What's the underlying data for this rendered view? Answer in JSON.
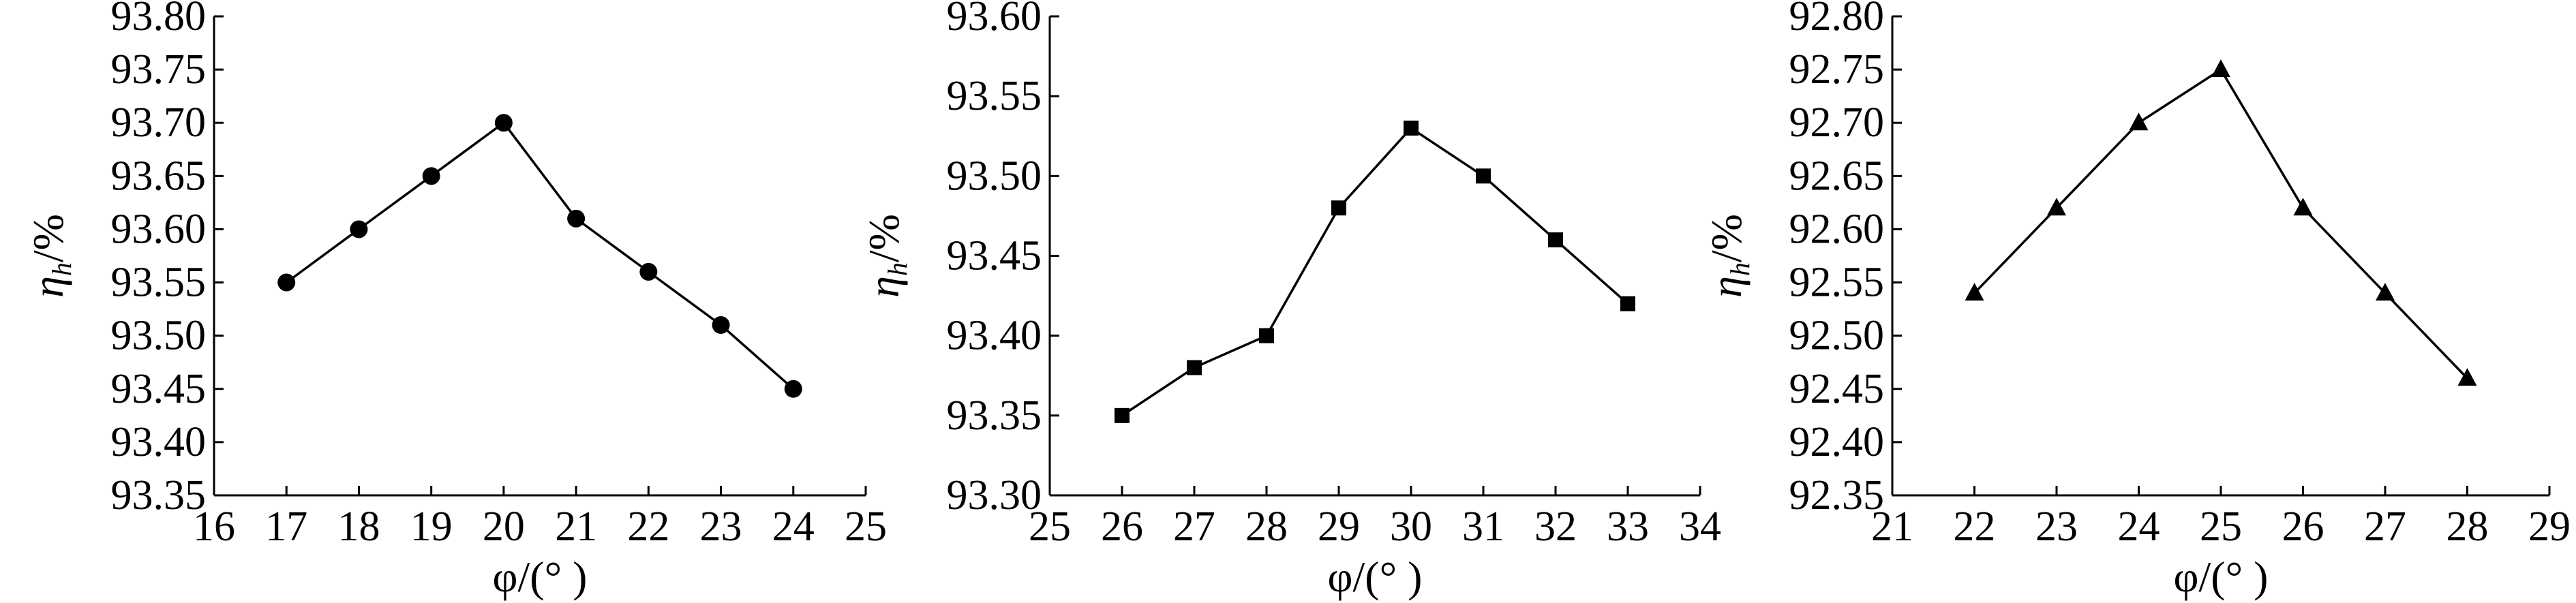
{
  "chart_data": [
    {
      "type": "line",
      "marker": "circle",
      "xlabel": "φ/(°  )",
      "ylabel": "η_h/%",
      "xlim": [
        16,
        25
      ],
      "ylim": [
        93.35,
        93.8
      ],
      "xticks": [
        "16",
        "17",
        "18",
        "19",
        "20",
        "21",
        "22",
        "23",
        "24",
        "25"
      ],
      "yticks": [
        "93.35",
        "93.40",
        "93.45",
        "93.50",
        "93.55",
        "93.60",
        "93.65",
        "93.70",
        "93.75",
        "93.80"
      ],
      "series": [
        {
          "x": [
            17,
            18,
            19,
            20,
            21,
            22,
            23,
            24
          ],
          "y": [
            93.55,
            93.6,
            93.65,
            93.7,
            93.61,
            93.56,
            93.51,
            93.45
          ]
        }
      ]
    },
    {
      "type": "line",
      "marker": "square",
      "xlabel": "φ/(°  )",
      "ylabel": "η_h/%",
      "xlim": [
        25,
        34
      ],
      "ylim": [
        93.3,
        93.6
      ],
      "xticks": [
        "25",
        "26",
        "27",
        "28",
        "29",
        "30",
        "31",
        "32",
        "33",
        "34"
      ],
      "yticks": [
        "93.30",
        "93.35",
        "93.40",
        "93.45",
        "93.50",
        "93.55",
        "93.60"
      ],
      "series": [
        {
          "x": [
            26,
            27,
            28,
            29,
            30,
            31,
            32,
            33
          ],
          "y": [
            93.35,
            93.38,
            93.4,
            93.48,
            93.53,
            93.5,
            93.46,
            93.42
          ]
        }
      ]
    },
    {
      "type": "line",
      "marker": "triangle",
      "xlabel": "φ/(°  )",
      "ylabel": "η_h/%",
      "xlim": [
        21,
        29
      ],
      "ylim": [
        92.35,
        92.8
      ],
      "xticks": [
        "21",
        "22",
        "23",
        "24",
        "25",
        "26",
        "27",
        "28",
        "29"
      ],
      "yticks": [
        "92.35",
        "92.40",
        "92.45",
        "92.50",
        "92.55",
        "92.60",
        "92.65",
        "92.70",
        "92.75",
        "92.80"
      ],
      "series": [
        {
          "x": [
            22,
            23,
            24,
            25,
            26,
            27,
            28
          ],
          "y": [
            92.54,
            92.62,
            92.7,
            92.75,
            92.62,
            92.54,
            92.46
          ]
        }
      ]
    }
  ]
}
